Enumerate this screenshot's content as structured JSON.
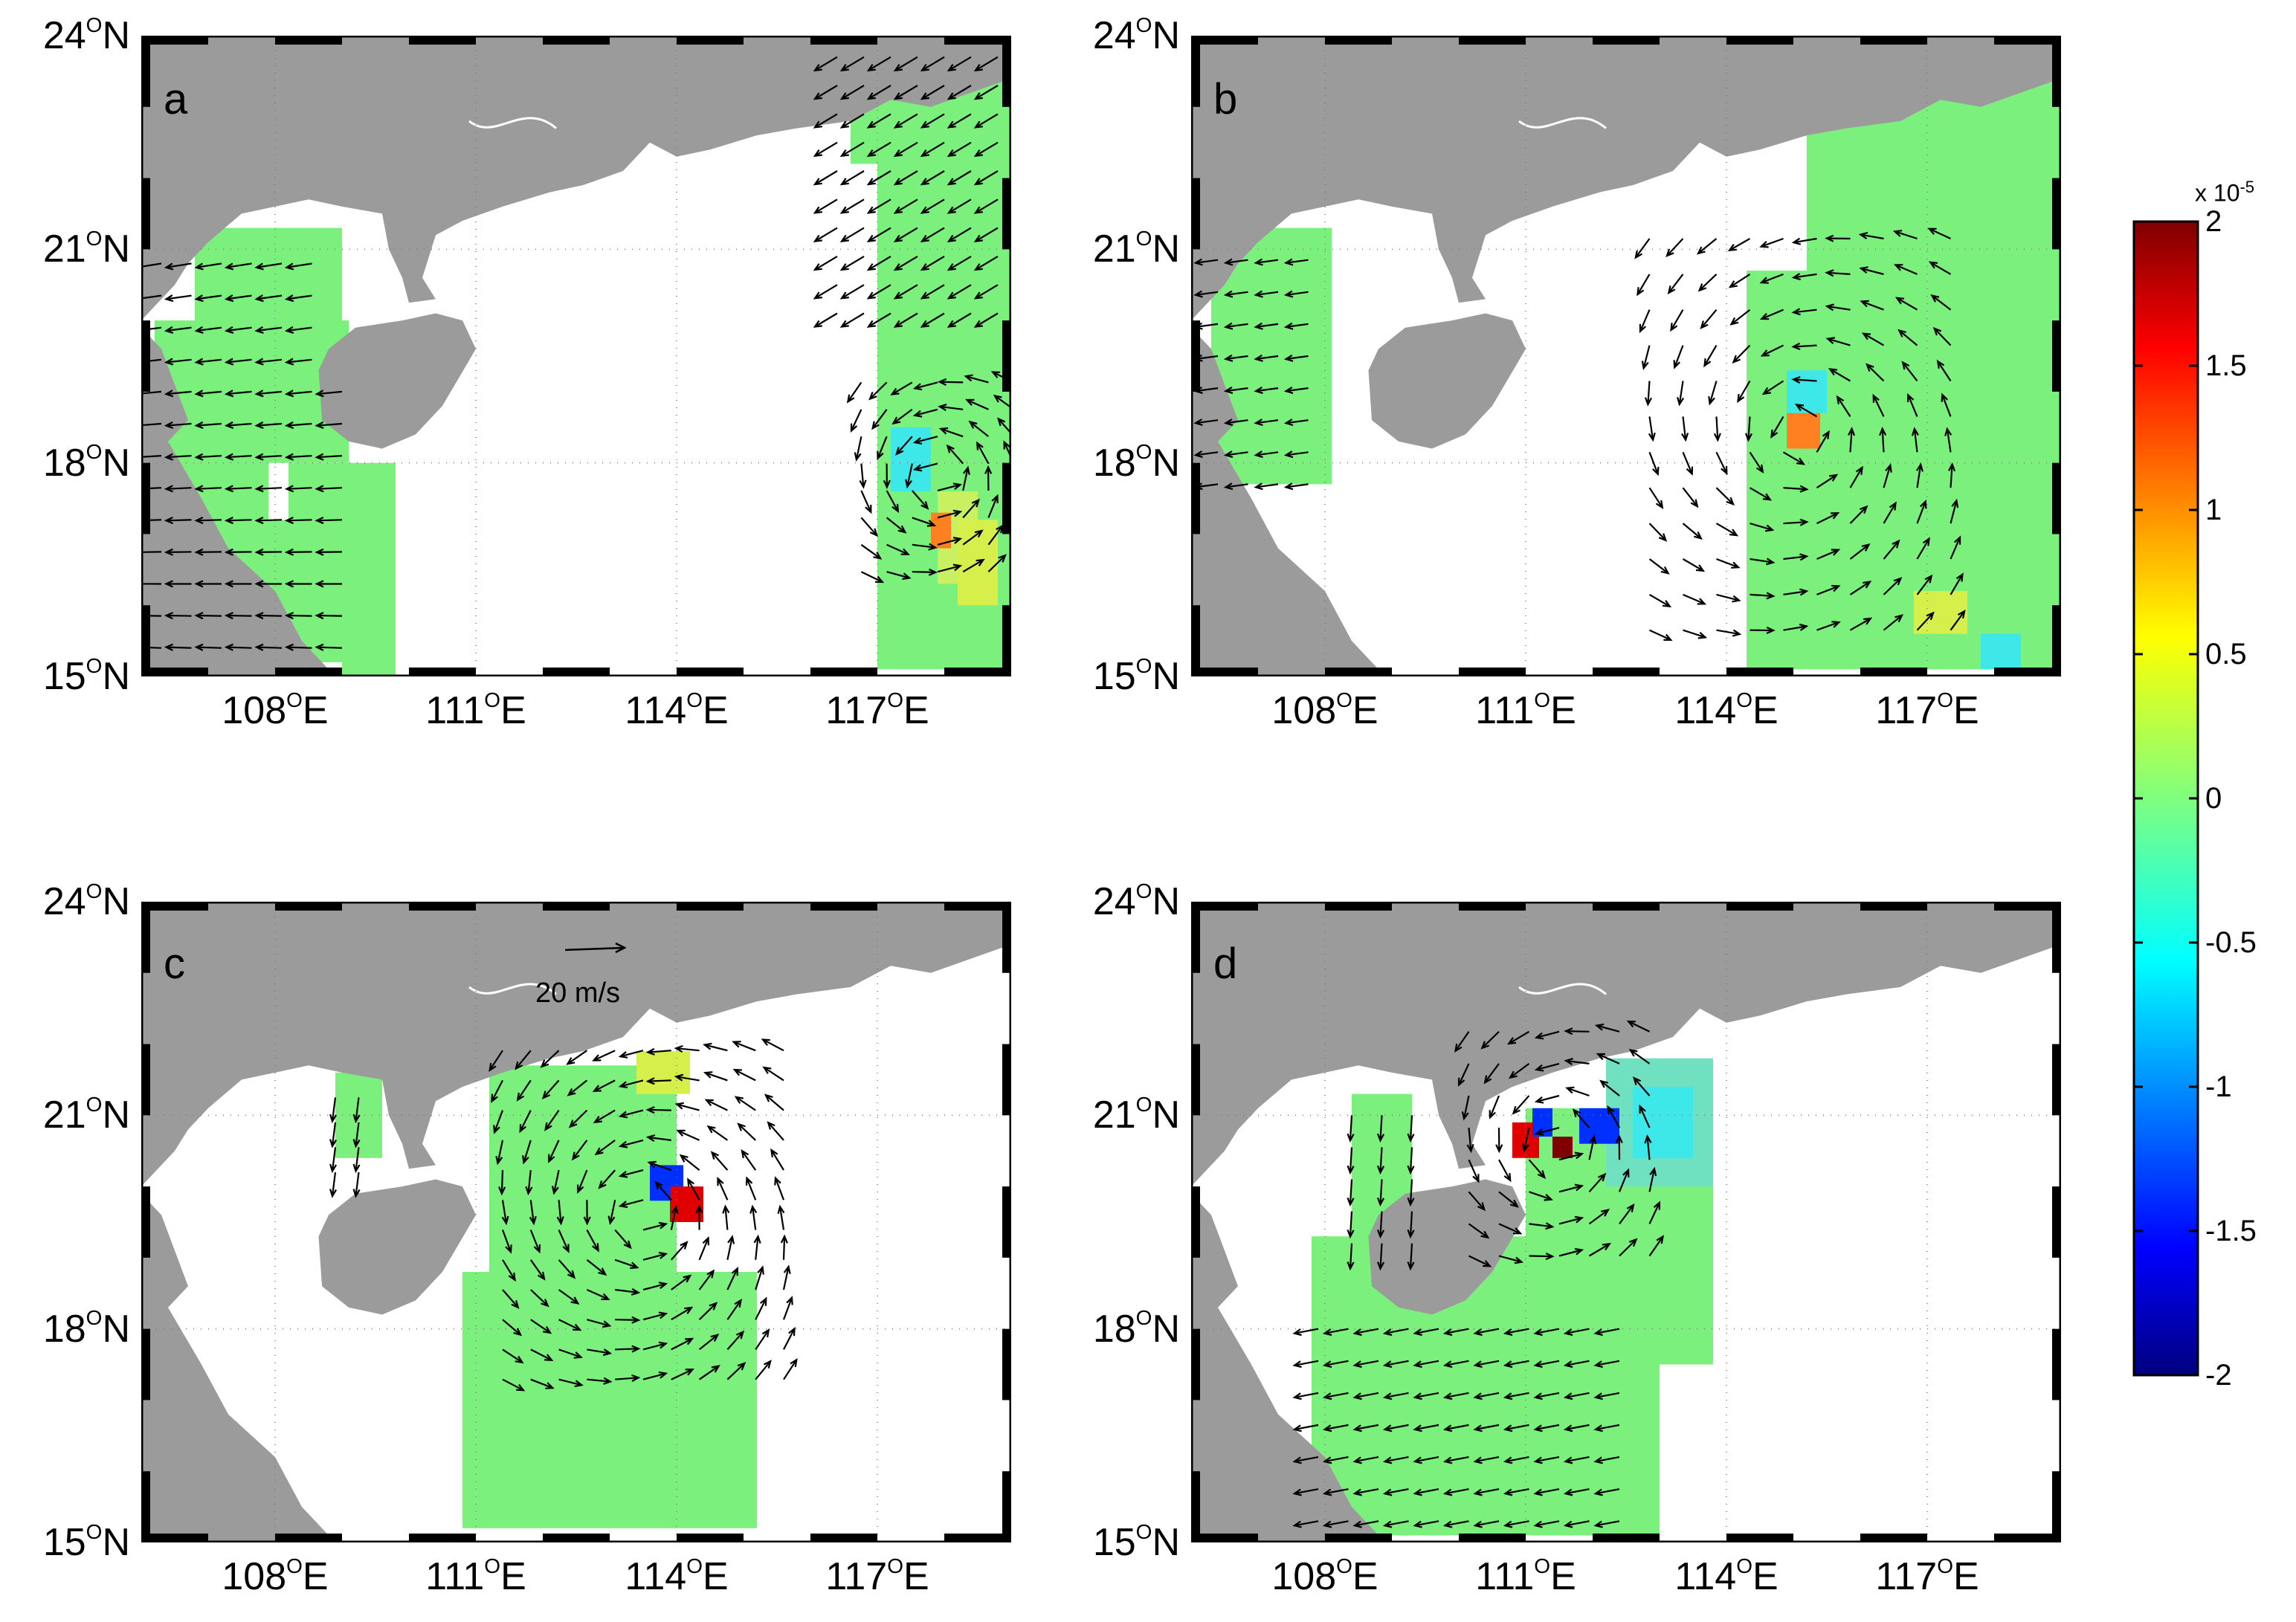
{
  "panels": [
    {
      "id": "a",
      "label": "a"
    },
    {
      "id": "b",
      "label": "b"
    },
    {
      "id": "c",
      "label": "c",
      "reference_arrow_label": "20 m/s"
    },
    {
      "id": "d",
      "label": "d"
    }
  ],
  "axes": {
    "y_ticks": [
      {
        "value": "24",
        "unit": "N"
      },
      {
        "value": "21",
        "unit": "N"
      },
      {
        "value": "18",
        "unit": "N"
      },
      {
        "value": "15",
        "unit": "N"
      }
    ],
    "x_ticks": [
      {
        "value": "108",
        "unit": "E"
      },
      {
        "value": "111",
        "unit": "E"
      },
      {
        "value": "114",
        "unit": "E"
      },
      {
        "value": "117",
        "unit": "E"
      }
    ],
    "degree_symbol": "O",
    "lon_range": [
      106,
      119
    ],
    "lat_range": [
      15,
      24
    ]
  },
  "colorbar": {
    "multiplier_text": "x 10",
    "multiplier_exponent": "-5",
    "ticks": [
      "2",
      "1.5",
      "1",
      "0.5",
      "0",
      "-0.5",
      "-1",
      "-1.5",
      "-2"
    ],
    "range": [
      -2,
      2
    ],
    "colormap": "jet"
  },
  "colors": {
    "land": "#9b9b9b",
    "ocean": "#ffffff",
    "field_near_zero": "#7cf07c",
    "arrow": "#000000"
  }
}
